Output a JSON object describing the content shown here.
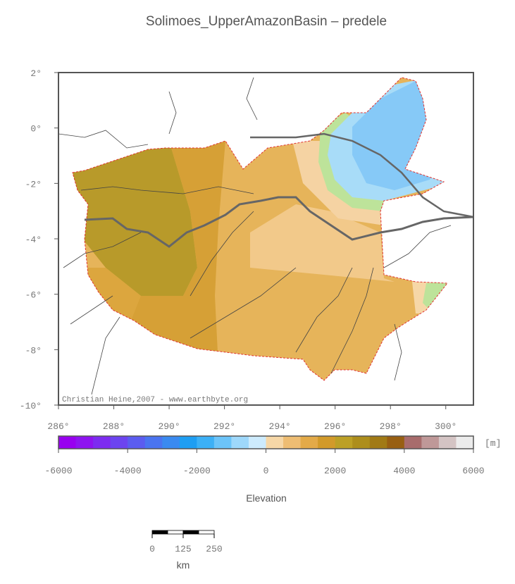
{
  "title": "Solimoes_UpperAmazonBasin – predele",
  "map": {
    "xlim": [
      286,
      301
    ],
    "ylim": [
      -10,
      2
    ],
    "xticks": [
      {
        "value": 286,
        "label": "286°"
      },
      {
        "value": 288,
        "label": "288°"
      },
      {
        "value": 290,
        "label": "290°"
      },
      {
        "value": 292,
        "label": "292°"
      },
      {
        "value": 294,
        "label": "294°"
      },
      {
        "value": 296,
        "label": "296°"
      },
      {
        "value": 298,
        "label": "298°"
      },
      {
        "value": 300,
        "label": "300°"
      }
    ],
    "yticks": [
      {
        "value": 2,
        "label": "2°"
      },
      {
        "value": 0,
        "label": "0°"
      },
      {
        "value": -2,
        "label": "-2°"
      },
      {
        "value": -4,
        "label": "-4°"
      },
      {
        "value": -6,
        "label": "-6°"
      },
      {
        "value": -8,
        "label": "-8°"
      },
      {
        "value": -10,
        "label": "-10°"
      }
    ],
    "credit": "Christian Heine,2007 - www.earthbyte.org"
  },
  "colorbar": {
    "lim": [
      -6000,
      6000
    ],
    "ticks": [
      -6000,
      -4000,
      -2000,
      0,
      2000,
      4000,
      6000
    ],
    "unit": "[m]",
    "label": "Elevation",
    "colors": [
      "#9800f0",
      "#8e14f0",
      "#7d2cf0",
      "#6c44f0",
      "#5b5cf0",
      "#4a74f0",
      "#3a8af0",
      "#1e9ef3",
      "#3cb0f6",
      "#6cc4f9",
      "#9ed8fb",
      "#cdebfd",
      "#f6d7a7",
      "#eebd73",
      "#e3aa48",
      "#d29a2a",
      "#bca026",
      "#ad8e1c",
      "#a17a15",
      "#985f12",
      "#a86c6c",
      "#bf9898",
      "#d4c4c4",
      "#ececec"
    ]
  },
  "scalebar": {
    "lim": [
      0,
      250
    ],
    "ticks": [
      0,
      125,
      250
    ],
    "unit": "km"
  }
}
